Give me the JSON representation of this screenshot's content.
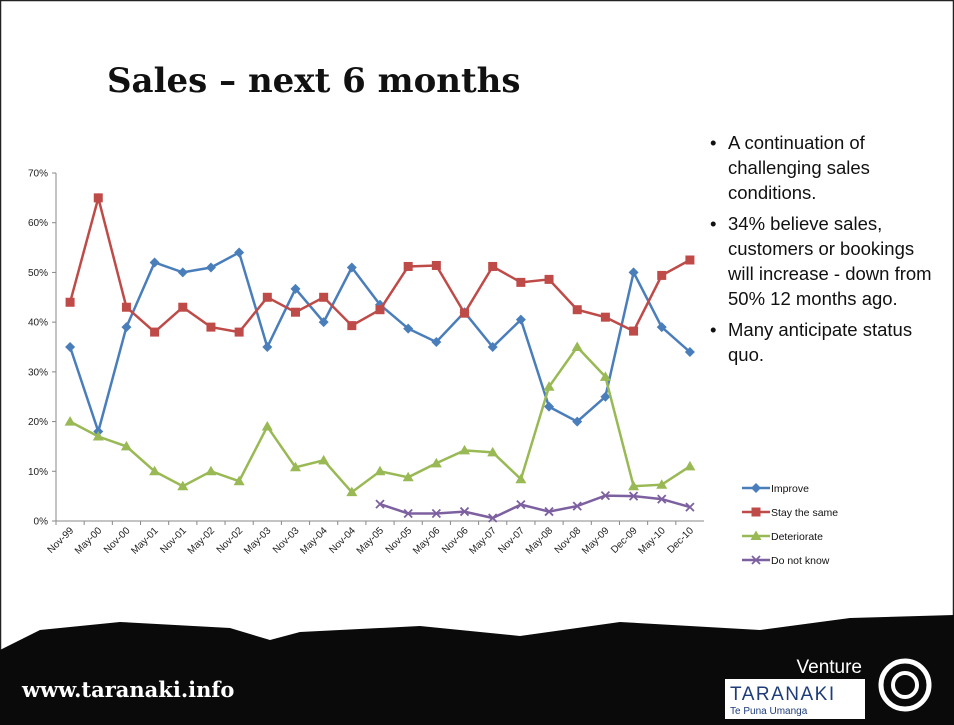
{
  "slide": {
    "title": "Sales – next 6 months",
    "bullets": [
      "A continuation of challenging sales conditions.",
      "34% believe sales, customers or bookings will increase  - down from 50% 12 months ago.",
      "Many anticipate status quo."
    ],
    "footer": "www.taranaki.info",
    "logo": {
      "top": "Venture",
      "name": "TARANAKI",
      "sub": "Te Puna Umanga"
    }
  },
  "chart_data": {
    "type": "line",
    "categories": [
      "Nov-99",
      "May-00",
      "Nov-00",
      "May-01",
      "Nov-01",
      "May-02",
      "Nov-02",
      "May-03",
      "Nov-03",
      "May-04",
      "Nov-04",
      "May-05",
      "Nov-05",
      "May-06",
      "Nov-06",
      "May-07",
      "Nov-07",
      "May-08",
      "Nov-08",
      "May-09",
      "Dec-09",
      "May-10",
      "Dec-10"
    ],
    "series": [
      {
        "name": "Improve",
        "color": "#4a7ebb",
        "marker": "diamond",
        "values": [
          35,
          18,
          39,
          52,
          50,
          51,
          54,
          35,
          46.7,
          40,
          51,
          43.5,
          38.7,
          36,
          42,
          35,
          40.5,
          23,
          20,
          25,
          50,
          39,
          34
        ]
      },
      {
        "name": "Stay the same",
        "color": "#be4b48",
        "marker": "square",
        "values": [
          44,
          65,
          43,
          38,
          43,
          39,
          38,
          45,
          42,
          45,
          39.3,
          42.5,
          51.2,
          51.4,
          41.8,
          51.2,
          48,
          48.6,
          42.5,
          41,
          38.2,
          49.4,
          52.5
        ]
      },
      {
        "name": "Deteriorate",
        "color": "#98b954",
        "marker": "triangle",
        "values": [
          20,
          17,
          15,
          10,
          7,
          10,
          8,
          19,
          10.8,
          12.2,
          5.8,
          10,
          8.8,
          11.6,
          14.2,
          13.8,
          8.4,
          27,
          35,
          29,
          7,
          7.3,
          11
        ]
      },
      {
        "name": "Do not know",
        "color": "#7d60a0",
        "marker": "x",
        "values": [
          null,
          null,
          null,
          null,
          null,
          null,
          null,
          null,
          null,
          null,
          null,
          3.4,
          1.5,
          1.5,
          1.9,
          0.6,
          3.3,
          1.9,
          3,
          5.1,
          5,
          4.4,
          2.8
        ]
      }
    ],
    "ylim": [
      0,
      70
    ],
    "yticks": [
      {
        "value": 0,
        "label": "0%"
      },
      {
        "value": 10,
        "label": "10%"
      },
      {
        "value": 20,
        "label": "20%"
      },
      {
        "value": 30,
        "label": "30%"
      },
      {
        "value": 40,
        "label": "40%"
      },
      {
        "value": 50,
        "label": "50%"
      },
      {
        "value": 60,
        "label": "60%"
      },
      {
        "value": 70,
        "label": "70%"
      }
    ],
    "legend": "right"
  }
}
